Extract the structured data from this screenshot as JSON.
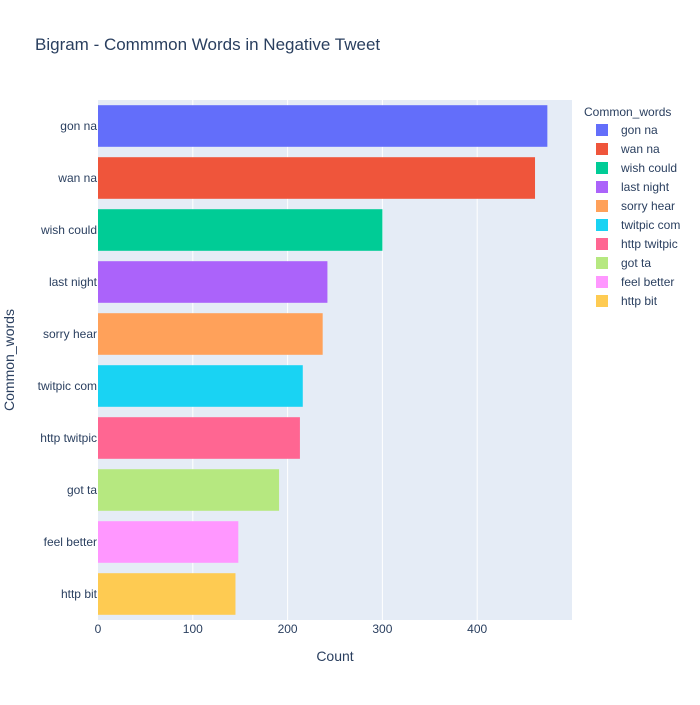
{
  "chart_data": {
    "type": "bar",
    "orientation": "horizontal",
    "title": "Bigram - Commmon Words in Negative Tweet",
    "xlabel": "Count",
    "ylabel": "Common_words",
    "legend_title": "Common_words",
    "legend_position": "top-right",
    "grid": true,
    "xlim": [
      0,
      500
    ],
    "xticks": [
      0,
      100,
      200,
      300,
      400
    ],
    "categories": [
      "gon na",
      "wan na",
      "wish could",
      "last night",
      "sorry hear",
      "twitpic com",
      "http twitpic",
      "got ta",
      "feel better",
      "http bit"
    ],
    "values": [
      474,
      461,
      300,
      242,
      237,
      216,
      213,
      191,
      148,
      145
    ],
    "colors": [
      "#636efa",
      "#ef553b",
      "#00cc96",
      "#ab63fa",
      "#ffa15a",
      "#19d3f3",
      "#ff6692",
      "#b6e880",
      "#ff97ff",
      "#fecb52"
    ]
  }
}
